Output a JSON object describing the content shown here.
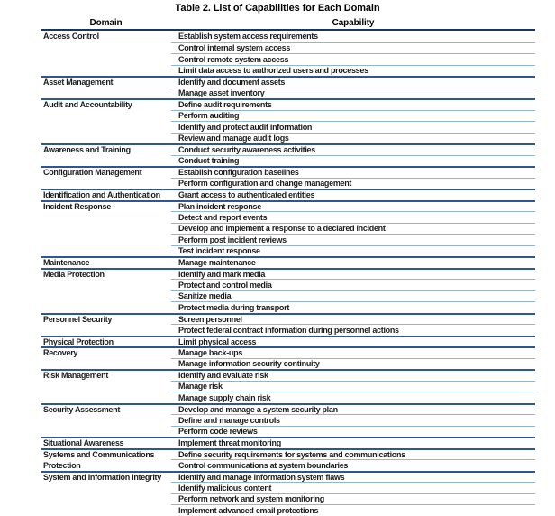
{
  "title": "Table 2. List of Capabilities for Each Domain",
  "table": {
    "columns": {
      "domain": "Domain",
      "capability": "Capability"
    },
    "line_colors": {
      "header_rule": "#17375E",
      "group_rule": "#2F5597",
      "capability_rule": "#95B3D7"
    },
    "groups": [
      {
        "domain": "Access Control",
        "capabilities": [
          "Establish system access requirements",
          "Control internal system access",
          "Control remote system access",
          "Limit data access to authorized users and processes"
        ]
      },
      {
        "domain": "Asset Management",
        "capabilities": [
          "Identify and document assets",
          "Manage asset inventory"
        ]
      },
      {
        "domain": "Audit and Accountability",
        "capabilities": [
          "Define audit requirements",
          "Perform auditing",
          "Identify and protect audit information",
          "Review and manage audit logs"
        ]
      },
      {
        "domain": "Awareness and Training",
        "capabilities": [
          "Conduct security awareness activities",
          "Conduct training"
        ]
      },
      {
        "domain": "Configuration Management",
        "capabilities": [
          "Establish configuration baselines",
          "Perform configuration and change management"
        ]
      },
      {
        "domain": "Identification and Authentication",
        "capabilities": [
          "Grant access to authenticated entities"
        ]
      },
      {
        "domain": "Incident Response",
        "capabilities": [
          "Plan incident response",
          "Detect and report events",
          "Develop and implement a response to a declared incident",
          "Perform post incident reviews",
          "Test incident response"
        ]
      },
      {
        "domain": "Maintenance",
        "capabilities": [
          "Manage maintenance"
        ]
      },
      {
        "domain": "Media Protection",
        "capabilities": [
          "Identify and mark media",
          "Protect and control media",
          "Sanitize media",
          "Protect media during transport"
        ]
      },
      {
        "domain": "Personnel Security",
        "capabilities": [
          "Screen personnel",
          "Protect federal contract information during personnel actions"
        ]
      },
      {
        "domain": "Physical Protection",
        "capabilities": [
          "Limit physical access"
        ]
      },
      {
        "domain": "Recovery",
        "capabilities": [
          "Manage back-ups",
          "Manage information security continuity"
        ]
      },
      {
        "domain": "Risk Management",
        "capabilities": [
          "Identify and evaluate risk",
          "Manage risk",
          "Manage supply chain risk"
        ]
      },
      {
        "domain": "Security Assessment",
        "capabilities": [
          "Develop and manage a system security plan",
          "Define and manage controls",
          "Perform code reviews"
        ]
      },
      {
        "domain": "Situational Awareness",
        "capabilities": [
          "Implement threat monitoring"
        ]
      },
      {
        "domain": "Systems and Communications Protection",
        "domain_lines": [
          "Systems and Communications",
          "Protection"
        ],
        "capabilities": [
          "Define security requirements for systems and communications",
          "Control communications at system boundaries"
        ]
      },
      {
        "domain": "System and Information Integrity",
        "capabilities": [
          "Identify and manage information system flaws",
          "Identify malicious content",
          "Perform network and system monitoring",
          "Implement advanced email protections"
        ]
      }
    ]
  }
}
